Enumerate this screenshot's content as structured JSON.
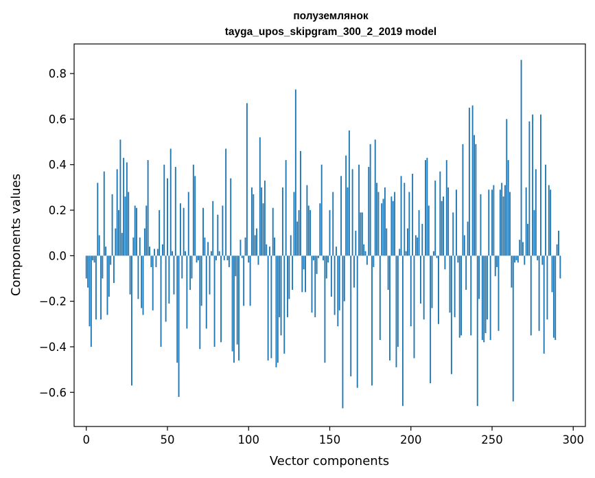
{
  "chart_data": {
    "type": "bar",
    "title": "полуземлянок",
    "subtitle": "tayga_upos_skipgram_300_2_2019 model",
    "xlabel": "Vector components",
    "ylabel": "Components values",
    "xlim": [
      -7.5,
      307.5
    ],
    "ylim": [
      -0.75,
      0.93
    ],
    "xticks": [
      0,
      50,
      100,
      150,
      200,
      250,
      300
    ],
    "yticks": [
      -0.6,
      -0.4,
      -0.2,
      0.0,
      0.2,
      0.4,
      0.6,
      0.8
    ],
    "ytick_labels": [
      "−0.6",
      "−0.4",
      "−0.2",
      "0.0",
      "0.2",
      "0.4",
      "0.6",
      "0.8"
    ],
    "grid": false,
    "bar_color": "#1f77b4",
    "series": [
      {
        "name": "components",
        "values": [
          -0.1,
          -0.14,
          -0.31,
          -0.4,
          -0.02,
          -0.03,
          -0.28,
          0.32,
          0.09,
          -0.28,
          -0.1,
          0.37,
          0.04,
          -0.26,
          -0.18,
          -0.04,
          0.27,
          -0.12,
          0.12,
          0.38,
          0.2,
          0.51,
          0.1,
          0.43,
          0.26,
          0.41,
          0.28,
          -0.17,
          -0.57,
          0.08,
          0.22,
          0.21,
          -0.19,
          0.08,
          -0.23,
          -0.26,
          0.12,
          0.22,
          0.42,
          0.04,
          -0.05,
          -0.24,
          0.03,
          -0.05,
          0.03,
          0.2,
          -0.4,
          0.05,
          0.4,
          -0.29,
          0.34,
          -0.21,
          0.47,
          0.02,
          -0.17,
          0.39,
          -0.47,
          -0.62,
          0.23,
          -0.1,
          0.21,
          0.02,
          -0.32,
          0.28,
          -0.15,
          -0.1,
          0.4,
          0.35,
          -0.03,
          -0.02,
          -0.41,
          -0.22,
          0.21,
          0.08,
          -0.32,
          0.06,
          -0.17,
          0.02,
          0.24,
          -0.4,
          -0.02,
          0.18,
          0.02,
          -0.38,
          0.22,
          -0.02,
          0.47,
          -0.02,
          -0.05,
          0.34,
          -0.42,
          -0.47,
          -0.09,
          -0.39,
          -0.46,
          0.07,
          -0.01,
          -0.22,
          0.08,
          0.67,
          -0.03,
          -0.22,
          0.3,
          0.27,
          0.09,
          0.12,
          -0.04,
          0.52,
          0.3,
          0.23,
          0.33,
          0.05,
          -0.46,
          0.04,
          -0.45,
          0.21,
          0.08,
          -0.49,
          -0.47,
          -0.27,
          -0.35,
          0.3,
          -0.43,
          0.42,
          -0.27,
          -0.19,
          0.09,
          -0.15,
          0.28,
          0.73,
          0.15,
          0.2,
          0.46,
          -0.16,
          -0.06,
          -0.16,
          0.31,
          0.22,
          0.2,
          -0.25,
          -0.02,
          -0.27,
          -0.08,
          -0.01,
          0.23,
          0.4,
          -0.02,
          -0.47,
          -0.1,
          -0.03,
          0.2,
          -0.18,
          0.28,
          -0.26,
          0.04,
          -0.31,
          -0.24,
          0.35,
          -0.67,
          -0.2,
          0.44,
          0.3,
          0.55,
          -0.53,
          0.38,
          -0.14,
          0.11,
          -0.58,
          0.4,
          0.19,
          0.19,
          0.05,
          0.02,
          -0.04,
          0.39,
          0.49,
          -0.57,
          -0.05,
          0.51,
          0.32,
          0.28,
          -0.37,
          0.23,
          0.25,
          0.3,
          0.12,
          -0.15,
          -0.46,
          0.26,
          0.24,
          0.28,
          -0.49,
          -0.4,
          0.03,
          0.35,
          -0.66,
          0.32,
          0.02,
          0.12,
          0.28,
          -0.31,
          0.36,
          -0.45,
          0.09,
          0.08,
          0.2,
          -0.21,
          0.14,
          -0.28,
          0.42,
          0.43,
          0.22,
          -0.56,
          -0.23,
          0.02,
          0.33,
          -0.01,
          -0.3,
          0.37,
          0.24,
          0.26,
          -0.06,
          0.42,
          0.3,
          -0.25,
          -0.52,
          0.19,
          -0.27,
          0.29,
          -0.03,
          -0.36,
          -0.35,
          0.49,
          0.09,
          -0.15,
          0.15,
          0.65,
          -0.35,
          0.66,
          0.53,
          0.49,
          -0.66,
          -0.19,
          0.27,
          -0.37,
          -0.38,
          -0.34,
          -0.28,
          0.29,
          -0.37,
          0.29,
          0.31,
          -0.09,
          -0.05,
          -0.33,
          0.29,
          0.32,
          0.26,
          0.31,
          0.6,
          0.42,
          0.28,
          -0.14,
          -0.64,
          -0.03,
          -0.02,
          -0.03,
          0.07,
          0.86,
          0.06,
          -0.04,
          0.3,
          0.14,
          0.59,
          -0.35,
          0.62,
          0.2,
          0.38,
          -0.02,
          -0.33,
          0.62,
          -0.04,
          -0.43,
          0.4,
          -0.28,
          0.31,
          0.29,
          -0.16,
          -0.36,
          -0.37,
          0.05,
          0.11,
          -0.1
        ]
      }
    ]
  }
}
